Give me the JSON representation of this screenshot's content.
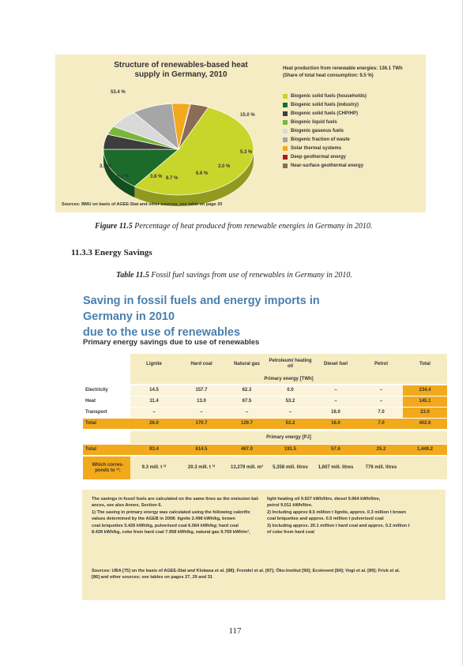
{
  "figure": {
    "title_lines": [
      "Structure of renewables-based heat",
      "supply in Germany, 2010"
    ],
    "legend_title_lines": [
      "Heat production from renewable energies: 136.1 TWh",
      "(Share of total heat consumption: 9.5 %)"
    ],
    "source": "Sources: BMU on basis of AGEE-Stat and other sources, see table on page 20"
  },
  "chart_data": {
    "type": "pie",
    "title": "Structure of renewables-based heat supply in Germany, 2010",
    "slices": [
      {
        "label": "Biogenic solid fuels (households)",
        "value_label": "53.4 %",
        "value": 53.4,
        "color": "#c8d62b"
      },
      {
        "label": "Biogenic solid fuels (industry)",
        "value_label": "15.0 %",
        "value": 15.0,
        "color": "#1c6b2b"
      },
      {
        "label": "Biogenic solid fuels (CHP/HP)",
        "value_label": "5.3 %",
        "value": 5.3,
        "color": "#3d3d3d"
      },
      {
        "label": "Biogenic liquid fuels",
        "value_label": "3.0 %",
        "value": 3.0,
        "color": "#7ab53b"
      },
      {
        "label": "Biogenic gaseous fuels",
        "value_label": "6.6 %",
        "value": 6.6,
        "color": "#d9d9d9"
      },
      {
        "label": "Biogenic fraction of waste",
        "value_label": "8.7 %",
        "value": 8.7,
        "color": "#a6a6a6"
      },
      {
        "label": "Solar thermal systems",
        "value_label": "3.8 %",
        "value": 3.8,
        "color": "#f2a91c"
      },
      {
        "label": "Deep geothermal energy",
        "value_label": "0.2 %",
        "value": 0.2,
        "color": "#b3151b"
      },
      {
        "label": "Near-surface geothermal energy",
        "value_label": "3.9 %",
        "value": 3.9,
        "color": "#8c6c52"
      }
    ],
    "legend": "right"
  },
  "captions": {
    "figure_num": "Figure 11.5",
    "figure_text": "Percentage of heat produced from renewable energies in Germany in 2010.",
    "section": "11.3.3  Energy Savings",
    "table_num": "Table 11.5",
    "table_text": "Fossil fuel savings from use of renewables in Germany in 2010."
  },
  "table": {
    "title_lines": [
      "Saving in fossil fuels and energy imports in Germany in 2010",
      "due to the use of renewables"
    ],
    "subtitle": "Primary energy savings due to use of renewables",
    "columns": [
      "Lignite",
      "Hard coal",
      "Natural gas",
      "Petroleum/ heating oil",
      "Diesel fuel",
      "Petrol",
      "Total"
    ],
    "twh_label": "Primary energy [TWh]",
    "twh_rows": [
      {
        "label": "Electricity",
        "cells": [
          "14.5",
          "157.7",
          "62.3",
          "0.0",
          "–",
          "–",
          "234.4"
        ]
      },
      {
        "label": "Heat",
        "cells": [
          "11.4",
          "13.0",
          "67.5",
          "53.2",
          "–",
          "–",
          "145.1"
        ]
      },
      {
        "label": "Transport",
        "cells": [
          "–",
          "–",
          "–",
          "–",
          "16.0",
          "7.0",
          "23.0"
        ]
      },
      {
        "label": "Total",
        "cells": [
          "26.0",
          "170.7",
          "129.7",
          "53.2",
          "16.0",
          "7.0",
          "402.6"
        ]
      }
    ],
    "pj_label": "Primary energy [PJ]",
    "pj_row": {
      "label": "Total",
      "cells": [
        "93.4",
        "614.5",
        "467.0",
        "191.5",
        "57.6",
        "25.2",
        "1,449.2"
      ]
    },
    "corr_row": {
      "label": "Which corres- ponds to ¹⁾:",
      "cells": [
        "9.3 mill. t ²⁾",
        "20.3 mill. t ³⁾",
        "13,279 mill. m³",
        "5,358 mill. litres",
        "1,607 mill. litres",
        "776 mill. litres",
        ""
      ]
    }
  },
  "notes": {
    "left": [
      "The savings in fossil fuels are calculated on the same lines as the emission bal-",
      "ances, see also Annex, Section 6.",
      "1)    The saving in primary energy was calculated using the following calorific",
      "        values determined by the AGEB in 2008: lignite 2.498 kWh/kg, brown",
      "        coal briquettes 5.426 kWh/kg, pulverised coal 6.064 kWh/kg; hard coal",
      "        8.428 kWh/kg, coke from hard coal 7.958 kWh/kg, natural gas 9.769 kWh/m³,"
    ],
    "right": [
      "        light heating oil 9.927 kWh/litre, diesel 9.964 kWh/litre,",
      "        petrol 9.011 kWh/litre.",
      "2)    Including approx 8.5 million t lignite, approx. 0.3 million t brown",
      "        coal briquettes and approx. 0.5 million t pulverised coal",
      "3)    Including approx. 20.1 million t hard coal and approx. 0.2 million t",
      "        of coke from hard coal"
    ],
    "sources": [
      "Sources: UBA [75] on the basis of AGEE-Stat and Klobasa et al. [88]; Frondel et al. [87]; Öko-Institut [90]; Ecoinvent [84]; Vogt et al. [89]; Frick et al.",
      "[86] and other sources; see tables on pages 27, 29 and 31"
    ]
  },
  "page_number": "117"
}
